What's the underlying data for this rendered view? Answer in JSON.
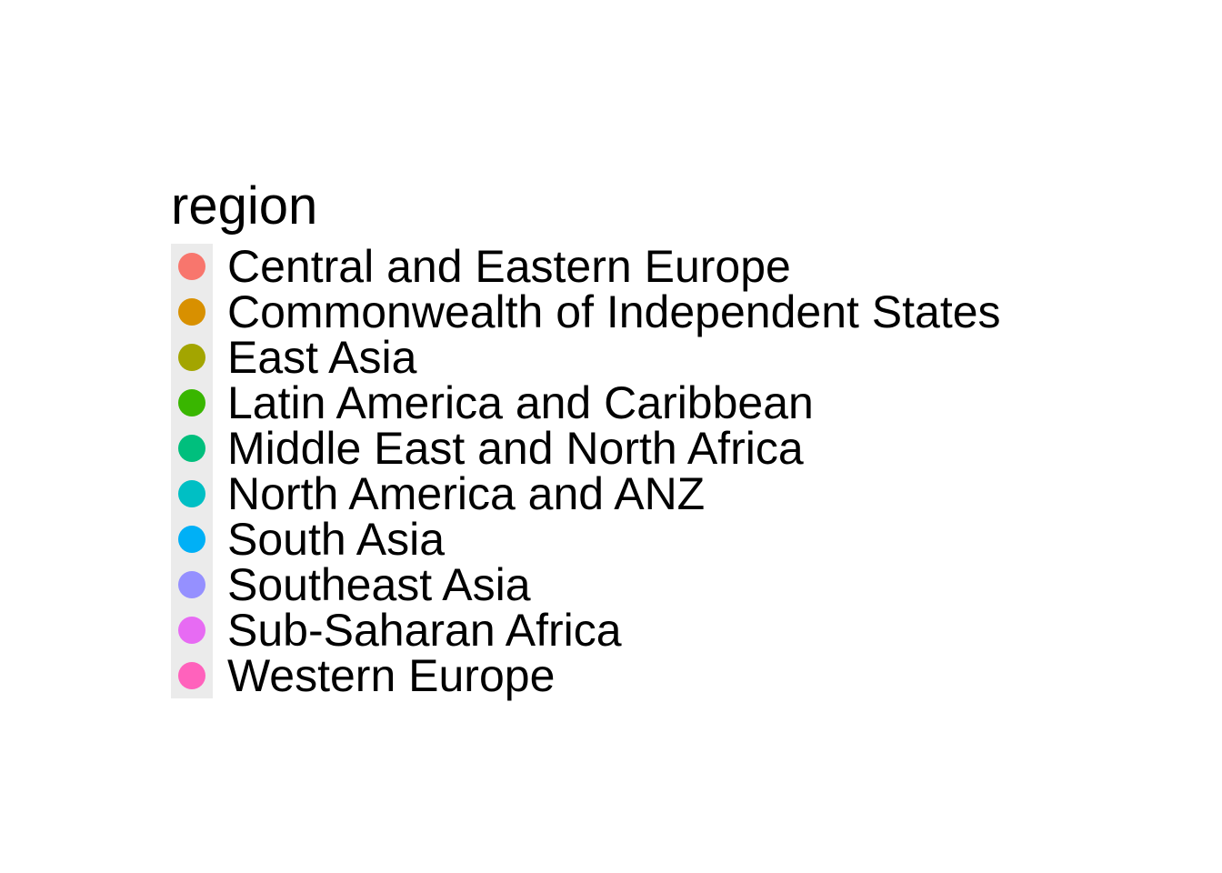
{
  "chart_data": {
    "type": "scatter",
    "legend_only": true,
    "legend": {
      "title": "region",
      "entries": [
        {
          "label": "Central and Eastern Europe",
          "color": "#F8766D"
        },
        {
          "label": "Commonwealth of Independent States",
          "color": "#D89000"
        },
        {
          "label": "East Asia",
          "color": "#A3A500"
        },
        {
          "label": "Latin America and Caribbean",
          "color": "#39B600"
        },
        {
          "label": "Middle East and North Africa",
          "color": "#00BF7D"
        },
        {
          "label": "North America and ANZ",
          "color": "#00BFC4"
        },
        {
          "label": "South Asia",
          "color": "#00B0F6"
        },
        {
          "label": "Southeast Asia",
          "color": "#9590FF"
        },
        {
          "label": "Sub-Saharan Africa",
          "color": "#E76BF3"
        },
        {
          "label": "Western Europe",
          "color": "#FF62BC"
        }
      ]
    }
  }
}
